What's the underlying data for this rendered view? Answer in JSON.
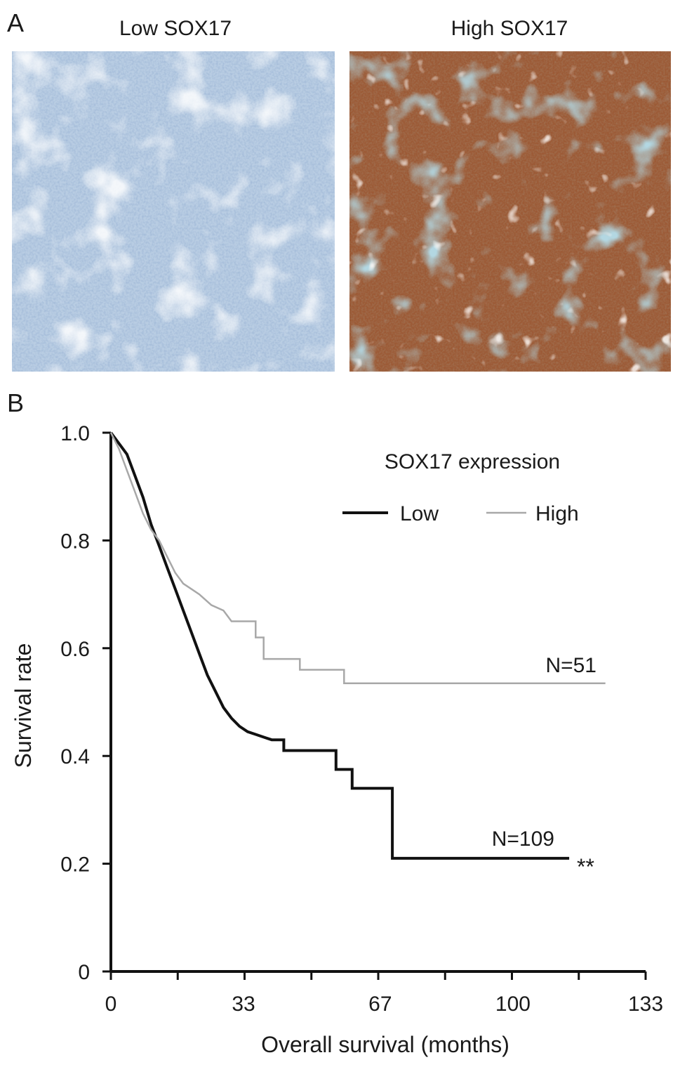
{
  "panel_a": {
    "letter": "A",
    "left_title": "Low SOX17",
    "right_title": "High SOX17",
    "left_image": "ihc-micrograph-low-staining",
    "right_image": "ihc-micrograph-high-staining",
    "colors": {
      "low_stain": "#c7d6e6",
      "high_stain": "#8b4a2c",
      "stroma": "#6fa3b5"
    }
  },
  "panel_b": {
    "letter": "B"
  },
  "chart_data": {
    "type": "line",
    "ylabel": "Survival rate",
    "xlabel": "Overall survival (months)",
    "x_ticks": [
      "0",
      "33",
      "67",
      "100",
      "133"
    ],
    "x_tick_values": [
      0,
      33,
      67,
      100,
      133
    ],
    "y_ticks": [
      "0",
      "0.2",
      "0.4",
      "0.6",
      "0.8",
      "1.0"
    ],
    "y_tick_values": [
      0,
      0.2,
      0.4,
      0.6,
      0.8,
      1.0
    ],
    "xlim": [
      0,
      133
    ],
    "ylim": [
      0,
      1.0
    ],
    "legend": {
      "title": "SOX17 expression",
      "position": "top-right"
    },
    "grid": false,
    "series": [
      {
        "name": "Low",
        "color": "#111111",
        "n_label": "N=109",
        "significance": "**",
        "points": [
          [
            0,
            1.0
          ],
          [
            2,
            0.98
          ],
          [
            4,
            0.96
          ],
          [
            6,
            0.92
          ],
          [
            8,
            0.88
          ],
          [
            10,
            0.83
          ],
          [
            12,
            0.79
          ],
          [
            14,
            0.75
          ],
          [
            16,
            0.71
          ],
          [
            18,
            0.67
          ],
          [
            20,
            0.63
          ],
          [
            22,
            0.59
          ],
          [
            24,
            0.55
          ],
          [
            26,
            0.52
          ],
          [
            28,
            0.49
          ],
          [
            30,
            0.47
          ],
          [
            32,
            0.455
          ],
          [
            34,
            0.445
          ],
          [
            36,
            0.44
          ],
          [
            38,
            0.435
          ],
          [
            40,
            0.43
          ],
          [
            43,
            0.43
          ],
          [
            43,
            0.41
          ],
          [
            56,
            0.41
          ],
          [
            56,
            0.375
          ],
          [
            60,
            0.375
          ],
          [
            60,
            0.34
          ],
          [
            70,
            0.34
          ],
          [
            70,
            0.21
          ],
          [
            114,
            0.21
          ]
        ]
      },
      {
        "name": "High",
        "color": "#a8a8a8",
        "n_label": "N=51",
        "points": [
          [
            0,
            1.0
          ],
          [
            2,
            0.97
          ],
          [
            4,
            0.93
          ],
          [
            6,
            0.89
          ],
          [
            8,
            0.85
          ],
          [
            10,
            0.82
          ],
          [
            12,
            0.8
          ],
          [
            14,
            0.77
          ],
          [
            16,
            0.74
          ],
          [
            18,
            0.72
          ],
          [
            20,
            0.71
          ],
          [
            22,
            0.7
          ],
          [
            25,
            0.68
          ],
          [
            28,
            0.67
          ],
          [
            30,
            0.65
          ],
          [
            36,
            0.65
          ],
          [
            36,
            0.62
          ],
          [
            38,
            0.62
          ],
          [
            38,
            0.58
          ],
          [
            47,
            0.58
          ],
          [
            47,
            0.56
          ],
          [
            58,
            0.56
          ],
          [
            58,
            0.535
          ],
          [
            123,
            0.535
          ]
        ]
      }
    ]
  }
}
